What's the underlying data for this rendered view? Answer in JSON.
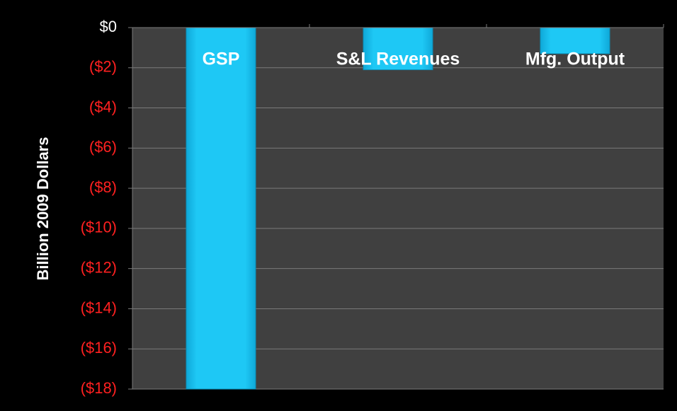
{
  "chart_data": {
    "type": "bar",
    "y_axis_label": "Billion 2009 Dollars",
    "categories": [
      "GSP",
      "S&L Revenues",
      "Mfg. Output"
    ],
    "values": [
      -18,
      -2.1,
      -1.3
    ],
    "color": "#1ec8f5",
    "ylim": [
      -18,
      0
    ],
    "yticks": [
      {
        "value": 0,
        "label": "$0"
      },
      {
        "value": -2,
        "label": "($2)"
      },
      {
        "value": -4,
        "label": "($4)"
      },
      {
        "value": -6,
        "label": "($6)"
      },
      {
        "value": -8,
        "label": "($8)"
      },
      {
        "value": -10,
        "label": "($10)"
      },
      {
        "value": -12,
        "label": "($12)"
      },
      {
        "value": -14,
        "label": "($14)"
      },
      {
        "value": -16,
        "label": "($16)"
      },
      {
        "value": -18,
        "label": "($18)"
      }
    ],
    "grid": true,
    "tick_label_color": "#ffffff",
    "negative_tick_label_color": "#ff2020"
  }
}
